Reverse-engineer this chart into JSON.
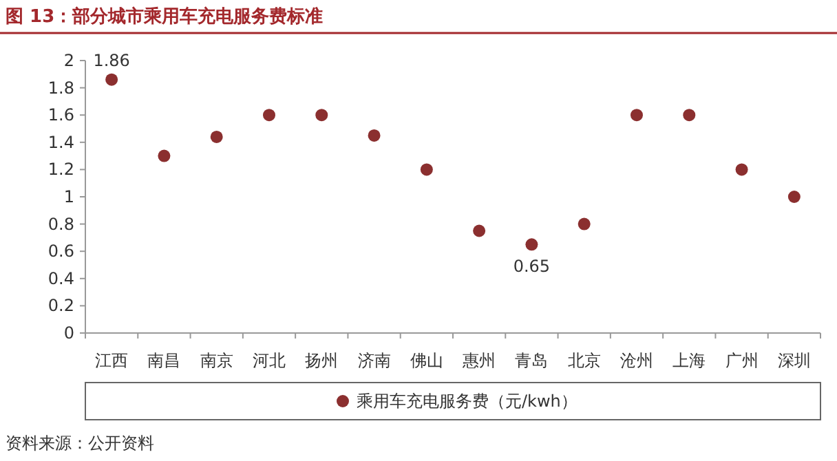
{
  "chart_data": {
    "type": "scatter",
    "title": "图 13：部分城市乘用车充电服务费标准",
    "categories": [
      "江西",
      "南昌",
      "南京",
      "河北",
      "扬州",
      "济南",
      "佛山",
      "惠州",
      "青岛",
      "北京",
      "沧州",
      "上海",
      "广州",
      "深圳"
    ],
    "series": [
      {
        "name": "乘用车充电服务费（元/kwh）",
        "color": "#8b2f2f",
        "values": [
          1.86,
          1.3,
          1.44,
          1.6,
          1.6,
          1.45,
          1.2,
          0.75,
          0.65,
          0.8,
          1.6,
          1.6,
          1.2,
          1.0
        ],
        "value_labels": [
          "1.86",
          null,
          null,
          null,
          null,
          null,
          null,
          null,
          "0.65",
          null,
          null,
          null,
          null,
          null
        ]
      }
    ],
    "ylim": [
      0,
      2
    ],
    "yticks": [
      0,
      0.2,
      0.4,
      0.6,
      0.8,
      1,
      1.2,
      1.4,
      1.6,
      1.8,
      2
    ],
    "marker": "circle",
    "legend": "bottom",
    "annotations": [
      "资料来源：公开资料"
    ]
  }
}
